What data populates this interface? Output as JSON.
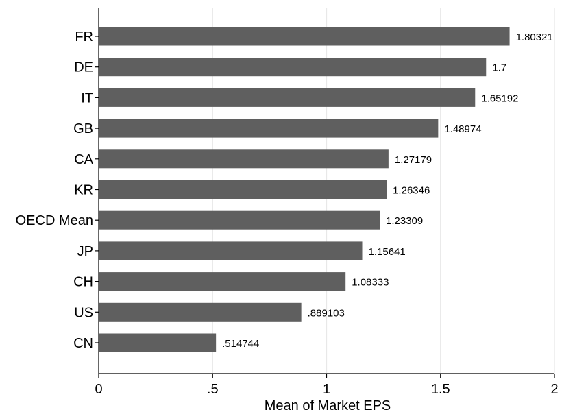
{
  "chart_data": {
    "type": "bar",
    "orientation": "horizontal",
    "categories": [
      "FR",
      "DE",
      "IT",
      "GB",
      "CA",
      "KR",
      "OECD Mean",
      "JP",
      "CH",
      "US",
      "CN"
    ],
    "values": [
      1.80321,
      1.7,
      1.65192,
      1.48974,
      1.27179,
      1.26346,
      1.23309,
      1.15641,
      1.08333,
      0.889103,
      0.514744
    ],
    "value_labels": [
      "1.80321",
      "1.7",
      "1.65192",
      "1.48974",
      "1.27179",
      "1.26346",
      "1.23309",
      "1.15641",
      "1.08333",
      ".889103",
      ".514744"
    ],
    "title": "",
    "xlabel": "Mean of Market EPS",
    "ylabel": "",
    "xlim": [
      0,
      2
    ],
    "x_ticks": [
      0,
      0.5,
      1,
      1.5,
      2
    ],
    "x_tick_labels": [
      "0",
      ".5",
      "1",
      "1.5",
      "2"
    ],
    "grid": "vertical",
    "legend": "none",
    "bar_color": "#5f5f5f",
    "grid_color": "#e8e8e8"
  }
}
